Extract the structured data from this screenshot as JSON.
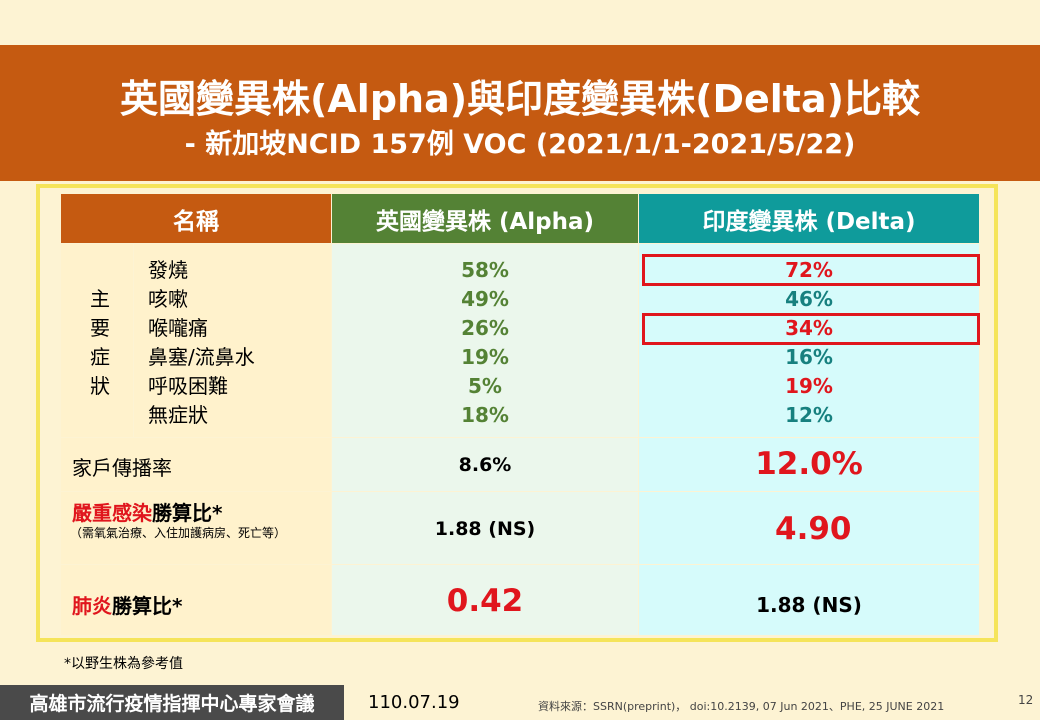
{
  "title": {
    "line1": "英國變異株(Alpha)與印度變異株(Delta)比較",
    "line2": "- 新加坡NCID 157例 VOC (2021/1/1-2021/5/22)"
  },
  "table": {
    "headers": {
      "name": "名稱",
      "alpha": "英國變異株 (Alpha)",
      "delta": "印度變異株 (Delta)"
    },
    "symptom_group_label": [
      "主",
      "要",
      "症",
      "狀"
    ],
    "symptoms": [
      {
        "name": "發燒",
        "alpha": "58%",
        "delta": "72%",
        "delta_highlight": true,
        "delta_boxed": true
      },
      {
        "name": "咳嗽",
        "alpha": "49%",
        "delta": "46%",
        "delta_highlight": false,
        "delta_boxed": false
      },
      {
        "name": "喉嚨痛",
        "alpha": "26%",
        "delta": "34%",
        "delta_highlight": true,
        "delta_boxed": true
      },
      {
        "name": "鼻塞/流鼻水",
        "alpha": "19%",
        "delta": "16%",
        "delta_highlight": false,
        "delta_boxed": false
      },
      {
        "name": "呼吸困難",
        "alpha": "5%",
        "delta": "19%",
        "delta_highlight": true,
        "delta_boxed": false
      },
      {
        "name": "無症狀",
        "alpha": "18%",
        "delta": "12%",
        "delta_highlight": false,
        "delta_boxed": false
      }
    ],
    "household": {
      "label": "家戶傳播率",
      "alpha": "8.6%",
      "delta": "12.0%"
    },
    "severe": {
      "label_red": "嚴重感染",
      "label_black": "勝算比*",
      "note": "（需氧氣治療、入住加護病房、死亡等）",
      "alpha": "1.88 (NS)",
      "delta": "4.90"
    },
    "pneumonia": {
      "label_red": "肺炎",
      "label_black": "勝算比*",
      "alpha": "0.42",
      "delta": "1.88 (NS)"
    }
  },
  "footnote": "*以野生株為參考值",
  "footer": {
    "org": "高雄市流行疫情指揮中心專家會議",
    "date": "110.07.19",
    "source": "資料來源：SSRN(preprint)， doi:10.2139, 07 Jun 2021、PHE, 25 JUNE 2021",
    "page": "12"
  },
  "colors": {
    "banner": "#c55a11",
    "alpha_header": "#548235",
    "delta_header": "#0f9b9b",
    "highlight_red": "#e0161d",
    "frame_yellow": "#f5e45a"
  }
}
